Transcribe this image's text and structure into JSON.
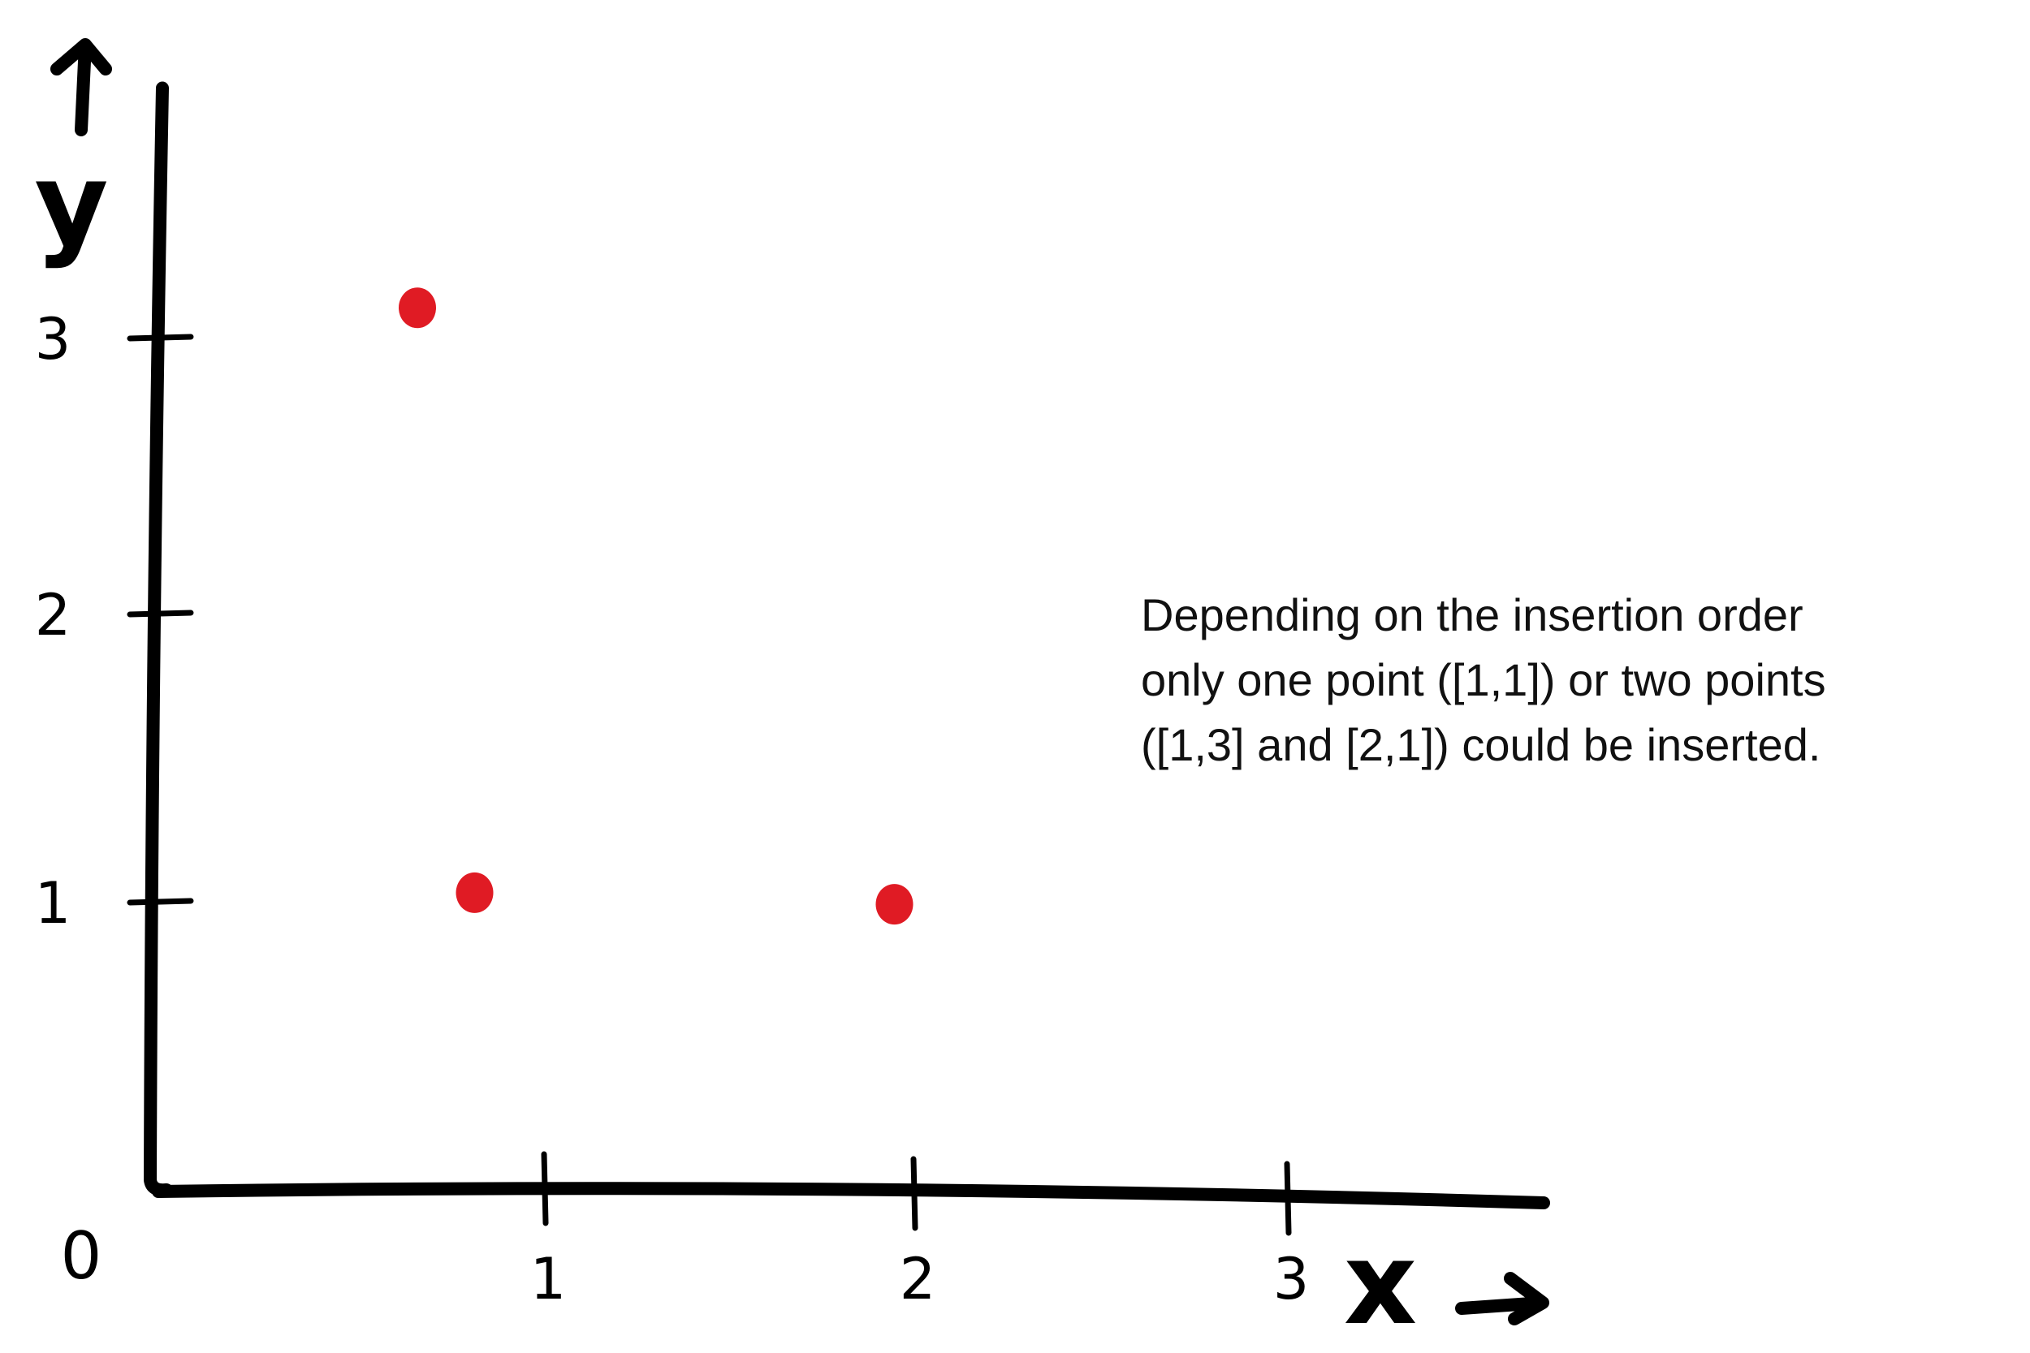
{
  "chart_data": {
    "type": "scatter",
    "xlabel": "x",
    "ylabel": "y",
    "origin_label": "0",
    "xticks": [
      1,
      2,
      3
    ],
    "yticks": [
      1,
      2,
      3
    ],
    "xlim": [
      0,
      3.3
    ],
    "ylim": [
      0,
      3.7
    ],
    "grid": false,
    "points": [
      {
        "x": 0.7,
        "y": 3.05
      },
      {
        "x": 0.85,
        "y": 1.02
      },
      {
        "x": 1.95,
        "y": 0.98
      }
    ],
    "point_color": "#e01b24",
    "axis_color": "#000000"
  },
  "annotation": {
    "lines": [
      "Depending on the insertion order",
      "only one point ([1,1]) or two points",
      "([1,3] and [2,1]) could be inserted."
    ]
  }
}
